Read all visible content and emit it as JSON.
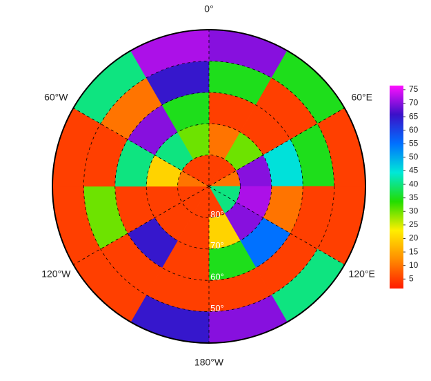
{
  "map": {
    "projection": "south-polar stereographic",
    "lon_labels": [
      {
        "value": 0,
        "label": "0°"
      },
      {
        "value": 60,
        "label": "60°E"
      },
      {
        "value": 120,
        "label": "120°E"
      },
      {
        "value": 180,
        "label": "180°W"
      },
      {
        "value": -120,
        "label": "120°W"
      },
      {
        "value": -60,
        "label": "60°W"
      }
    ],
    "lat_labels": [
      {
        "value": 80,
        "label": "80°"
      },
      {
        "value": 70,
        "label": "70°"
      },
      {
        "value": 60,
        "label": "60°"
      },
      {
        "value": 50,
        "label": "50°"
      }
    ],
    "lat_lim": [
      90,
      40
    ],
    "field": {
      "lat_edges": [
        90,
        80,
        70,
        60,
        50,
        40
      ],
      "lon_edges": [
        0,
        30,
        60,
        90,
        120,
        150,
        180,
        210,
        240,
        270,
        300,
        330,
        360
      ],
      "values": [
        [
          5,
          5,
          10,
          40,
          40,
          5,
          5,
          5,
          5,
          10,
          5,
          5
        ],
        [
          10,
          30,
          70,
          72,
          70,
          20,
          5,
          5,
          5,
          20,
          40,
          30
        ],
        [
          5,
          5,
          45,
          10,
          55,
          35,
          5,
          65,
          5,
          40,
          70,
          35
        ],
        [
          35,
          5,
          35,
          5,
          5,
          5,
          5,
          5,
          30,
          5,
          10,
          65
        ],
        [
          70,
          35,
          5,
          5,
          40,
          70,
          65,
          5,
          5,
          5,
          40,
          72
        ]
      ]
    },
    "colorbar": {
      "lim": [
        1.5,
        76.5
      ],
      "ticks": [
        5,
        10,
        15,
        20,
        25,
        30,
        35,
        40,
        45,
        50,
        55,
        60,
        65,
        70,
        75
      ],
      "colormap": [
        "#ff1a00",
        "#ff8c00",
        "#ffee00",
        "#22dd00",
        "#00e8d8",
        "#0070ff",
        "#3a10c8",
        "#ff10ff"
      ]
    }
  }
}
